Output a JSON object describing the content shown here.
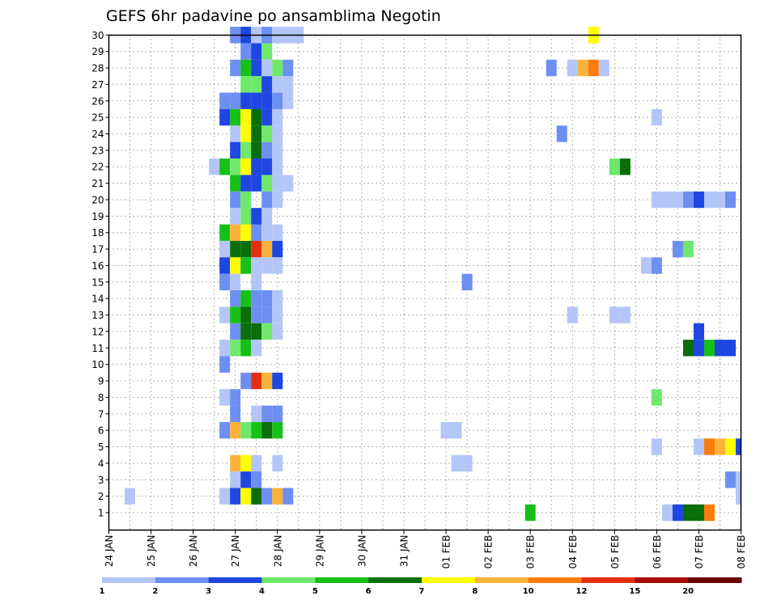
{
  "chart_data": {
    "type": "heatmap",
    "title": "GEFS 6hr padavine po ansamblima Negotin",
    "x_ticks": [
      "24 JAN",
      "25 JAN",
      "26 JAN",
      "27 JAN",
      "28 JAN",
      "29 JAN",
      "30 JAN",
      "31 JAN",
      "01 FEB",
      "02 FEB",
      "03 FEB",
      "04 FEB",
      "05 FEB",
      "06 FEB",
      "07 FEB",
      "08 FEB"
    ],
    "y_ticks": [
      "1",
      "2",
      "3",
      "4",
      "5",
      "6",
      "7",
      "8",
      "9",
      "10",
      "11",
      "12",
      "13",
      "14",
      "15",
      "16",
      "17",
      "18",
      "19",
      "20",
      "21",
      "22",
      "23",
      "24",
      "25",
      "26",
      "27",
      "28",
      "29",
      "30"
    ],
    "grid": true,
    "legend": {
      "position": "bottom",
      "labels": [
        "1",
        "2",
        "3",
        "4",
        "5",
        "6",
        "7",
        "8",
        "10",
        "12",
        "15",
        "20"
      ],
      "colors": [
        "#b3c6f7",
        "#6e8ff2",
        "#1e46e0",
        "#6fe86c",
        "#17c017",
        "#0a6e0a",
        "#ffff00",
        "#fdb33a",
        "#fb7b0c",
        "#e52e10",
        "#a80a0a",
        "#6a0303"
      ]
    },
    "cells": [
      {
        "member": 30,
        "x": "2026-01-27T00",
        "v": 2
      },
      {
        "member": 30,
        "x": "2026-01-27T06",
        "v": 3
      },
      {
        "member": 30,
        "x": "2026-01-27T12",
        "v": 1
      },
      {
        "member": 30,
        "x": "2026-01-27T18",
        "v": 2
      },
      {
        "member": 30,
        "x": "2026-01-28T00",
        "v": 1
      },
      {
        "member": 30,
        "x": "2026-01-28T06",
        "v": 1
      },
      {
        "member": 30,
        "x": "2026-01-28T12",
        "v": 1
      },
      {
        "member": 30,
        "x": "2026-02-04T12",
        "v": 7
      },
      {
        "member": 29,
        "x": "2026-01-27T06",
        "v": 2
      },
      {
        "member": 29,
        "x": "2026-01-27T12",
        "v": 3
      },
      {
        "member": 29,
        "x": "2026-01-27T18",
        "v": 4
      },
      {
        "member": 28,
        "x": "2026-01-27T00",
        "v": 2
      },
      {
        "member": 28,
        "x": "2026-01-27T06",
        "v": 5
      },
      {
        "member": 28,
        "x": "2026-01-27T12",
        "v": 3
      },
      {
        "member": 28,
        "x": "2026-01-27T18",
        "v": 1
      },
      {
        "member": 28,
        "x": "2026-01-28T00",
        "v": 4
      },
      {
        "member": 28,
        "x": "2026-01-28T06",
        "v": 2
      },
      {
        "member": 28,
        "x": "2026-02-03T12",
        "v": 2
      },
      {
        "member": 28,
        "x": "2026-02-04T00",
        "v": 1
      },
      {
        "member": 28,
        "x": "2026-02-04T06",
        "v": 8
      },
      {
        "member": 28,
        "x": "2026-02-04T12",
        "v": 10
      },
      {
        "member": 28,
        "x": "2026-02-04T18",
        "v": 1
      },
      {
        "member": 27,
        "x": "2026-01-27T06",
        "v": 4
      },
      {
        "member": 27,
        "x": "2026-01-27T12",
        "v": 4
      },
      {
        "member": 27,
        "x": "2026-01-27T18",
        "v": 3
      },
      {
        "member": 27,
        "x": "2026-01-28T00",
        "v": 1
      },
      {
        "member": 27,
        "x": "2026-01-28T06",
        "v": 1
      },
      {
        "member": 26,
        "x": "2026-01-26T18",
        "v": 2
      },
      {
        "member": 26,
        "x": "2026-01-27T00",
        "v": 2
      },
      {
        "member": 26,
        "x": "2026-01-27T06",
        "v": 3
      },
      {
        "member": 26,
        "x": "2026-01-27T12",
        "v": 3
      },
      {
        "member": 26,
        "x": "2026-01-27T18",
        "v": 3
      },
      {
        "member": 26,
        "x": "2026-01-28T00",
        "v": 2
      },
      {
        "member": 26,
        "x": "2026-01-28T06",
        "v": 1
      },
      {
        "member": 25,
        "x": "2026-01-26T18",
        "v": 3
      },
      {
        "member": 25,
        "x": "2026-01-27T00",
        "v": 5
      },
      {
        "member": 25,
        "x": "2026-01-27T06",
        "v": 7
      },
      {
        "member": 25,
        "x": "2026-01-27T12",
        "v": 6
      },
      {
        "member": 25,
        "x": "2026-01-27T18",
        "v": 3
      },
      {
        "member": 25,
        "x": "2026-01-28T00",
        "v": 1
      },
      {
        "member": 25,
        "x": "2026-02-06T00",
        "v": 1
      },
      {
        "member": 24,
        "x": "2026-01-27T00",
        "v": 1
      },
      {
        "member": 24,
        "x": "2026-01-27T06",
        "v": 7
      },
      {
        "member": 24,
        "x": "2026-01-27T12",
        "v": 6
      },
      {
        "member": 24,
        "x": "2026-01-27T18",
        "v": 4
      },
      {
        "member": 24,
        "x": "2026-01-28T00",
        "v": 1
      },
      {
        "member": 24,
        "x": "2026-02-03T18",
        "v": 2
      },
      {
        "member": 23,
        "x": "2026-01-27T00",
        "v": 3
      },
      {
        "member": 23,
        "x": "2026-01-27T06",
        "v": 4
      },
      {
        "member": 23,
        "x": "2026-01-27T12",
        "v": 6
      },
      {
        "member": 23,
        "x": "2026-01-27T18",
        "v": 2
      },
      {
        "member": 23,
        "x": "2026-01-28T00",
        "v": 1
      },
      {
        "member": 22,
        "x": "2026-01-26T12",
        "v": 1
      },
      {
        "member": 22,
        "x": "2026-01-26T18",
        "v": 5
      },
      {
        "member": 22,
        "x": "2026-01-27T00",
        "v": 4
      },
      {
        "member": 22,
        "x": "2026-01-27T06",
        "v": 7
      },
      {
        "member": 22,
        "x": "2026-01-27T12",
        "v": 3
      },
      {
        "member": 22,
        "x": "2026-01-27T18",
        "v": 3
      },
      {
        "member": 22,
        "x": "2026-01-28T00",
        "v": 1
      },
      {
        "member": 22,
        "x": "2026-02-05T00",
        "v": 4
      },
      {
        "member": 22,
        "x": "2026-02-05T06",
        "v": 6
      },
      {
        "member": 21,
        "x": "2026-01-27T00",
        "v": 5
      },
      {
        "member": 21,
        "x": "2026-01-27T06",
        "v": 3
      },
      {
        "member": 21,
        "x": "2026-01-27T12",
        "v": 3
      },
      {
        "member": 21,
        "x": "2026-01-27T18",
        "v": 4
      },
      {
        "member": 21,
        "x": "2026-01-28T00",
        "v": 1
      },
      {
        "member": 21,
        "x": "2026-01-28T06",
        "v": 1
      },
      {
        "member": 20,
        "x": "2026-01-27T00",
        "v": 2
      },
      {
        "member": 20,
        "x": "2026-01-27T06",
        "v": 4
      },
      {
        "member": 20,
        "x": "2026-01-27T18",
        "v": 2
      },
      {
        "member": 20,
        "x": "2026-01-28T00",
        "v": 1
      },
      {
        "member": 20,
        "x": "2026-02-06T00",
        "v": 1
      },
      {
        "member": 20,
        "x": "2026-02-06T06",
        "v": 1
      },
      {
        "member": 20,
        "x": "2026-02-06T12",
        "v": 1
      },
      {
        "member": 20,
        "x": "2026-02-06T18",
        "v": 2
      },
      {
        "member": 20,
        "x": "2026-02-07T00",
        "v": 3
      },
      {
        "member": 20,
        "x": "2026-02-07T06",
        "v": 1
      },
      {
        "member": 20,
        "x": "2026-02-07T12",
        "v": 1
      },
      {
        "member": 20,
        "x": "2026-02-07T18",
        "v": 2
      },
      {
        "member": 19,
        "x": "2026-01-27T00",
        "v": 1
      },
      {
        "member": 19,
        "x": "2026-01-27T06",
        "v": 4
      },
      {
        "member": 19,
        "x": "2026-01-27T12",
        "v": 3
      },
      {
        "member": 19,
        "x": "2026-01-27T18",
        "v": 1
      },
      {
        "member": 18,
        "x": "2026-01-26T18",
        "v": 5
      },
      {
        "member": 18,
        "x": "2026-01-27T00",
        "v": 8
      },
      {
        "member": 18,
        "x": "2026-01-27T06",
        "v": 7
      },
      {
        "member": 18,
        "x": "2026-01-27T12",
        "v": 2
      },
      {
        "member": 18,
        "x": "2026-01-27T18",
        "v": 1
      },
      {
        "member": 18,
        "x": "2026-01-28T00",
        "v": 1
      },
      {
        "member": 17,
        "x": "2026-01-26T18",
        "v": 1
      },
      {
        "member": 17,
        "x": "2026-01-27T00",
        "v": 6
      },
      {
        "member": 17,
        "x": "2026-01-27T06",
        "v": 6
      },
      {
        "member": 17,
        "x": "2026-01-27T12",
        "v": 12
      },
      {
        "member": 17,
        "x": "2026-01-27T18",
        "v": 8
      },
      {
        "member": 17,
        "x": "2026-01-28T00",
        "v": 3
      },
      {
        "member": 17,
        "x": "2026-02-06T12",
        "v": 2
      },
      {
        "member": 17,
        "x": "2026-02-06T18",
        "v": 4
      },
      {
        "member": 16,
        "x": "2026-01-26T18",
        "v": 3
      },
      {
        "member": 16,
        "x": "2026-01-27T00",
        "v": 7
      },
      {
        "member": 16,
        "x": "2026-01-27T06",
        "v": 5
      },
      {
        "member": 16,
        "x": "2026-01-27T12",
        "v": 1
      },
      {
        "member": 16,
        "x": "2026-01-27T18",
        "v": 1
      },
      {
        "member": 16,
        "x": "2026-01-28T00",
        "v": 1
      },
      {
        "member": 16,
        "x": "2026-02-05T18",
        "v": 1
      },
      {
        "member": 16,
        "x": "2026-02-06T00",
        "v": 2
      },
      {
        "member": 15,
        "x": "2026-01-26T18",
        "v": 2
      },
      {
        "member": 15,
        "x": "2026-01-27T00",
        "v": 1
      },
      {
        "member": 15,
        "x": "2026-01-27T12",
        "v": 1
      },
      {
        "member": 15,
        "x": "2026-02-01T12",
        "v": 2
      },
      {
        "member": 14,
        "x": "2026-01-27T00",
        "v": 2
      },
      {
        "member": 14,
        "x": "2026-01-27T06",
        "v": 5
      },
      {
        "member": 14,
        "x": "2026-01-27T12",
        "v": 2
      },
      {
        "member": 14,
        "x": "2026-01-27T18",
        "v": 2
      },
      {
        "member": 14,
        "x": "2026-01-28T00",
        "v": 1
      },
      {
        "member": 13,
        "x": "2026-01-26T18",
        "v": 1
      },
      {
        "member": 13,
        "x": "2026-01-27T00",
        "v": 5
      },
      {
        "member": 13,
        "x": "2026-01-27T06",
        "v": 6
      },
      {
        "member": 13,
        "x": "2026-01-27T12",
        "v": 2
      },
      {
        "member": 13,
        "x": "2026-01-27T18",
        "v": 2
      },
      {
        "member": 13,
        "x": "2026-01-28T00",
        "v": 1
      },
      {
        "member": 13,
        "x": "2026-02-04T00",
        "v": 1
      },
      {
        "member": 13,
        "x": "2026-02-05T00",
        "v": 1
      },
      {
        "member": 13,
        "x": "2026-02-05T06",
        "v": 1
      },
      {
        "member": 12,
        "x": "2026-01-27T00",
        "v": 2
      },
      {
        "member": 12,
        "x": "2026-01-27T06",
        "v": 6
      },
      {
        "member": 12,
        "x": "2026-01-27T12",
        "v": 6
      },
      {
        "member": 12,
        "x": "2026-01-27T18",
        "v": 4
      },
      {
        "member": 12,
        "x": "2026-01-28T00",
        "v": 1
      },
      {
        "member": 12,
        "x": "2026-02-07T00",
        "v": 3
      },
      {
        "member": 11,
        "x": "2026-01-26T18",
        "v": 1
      },
      {
        "member": 11,
        "x": "2026-01-27T00",
        "v": 4
      },
      {
        "member": 11,
        "x": "2026-01-27T06",
        "v": 5
      },
      {
        "member": 11,
        "x": "2026-01-27T12",
        "v": 1
      },
      {
        "member": 11,
        "x": "2026-02-06T18",
        "v": 6
      },
      {
        "member": 11,
        "x": "2026-02-07T00",
        "v": 3
      },
      {
        "member": 11,
        "x": "2026-02-07T06",
        "v": 5
      },
      {
        "member": 11,
        "x": "2026-02-07T12",
        "v": 3
      },
      {
        "member": 11,
        "x": "2026-02-07T18",
        "v": 3
      },
      {
        "member": 10,
        "x": "2026-01-26T18",
        "v": 2
      },
      {
        "member": 9,
        "x": "2026-01-27T06",
        "v": 2
      },
      {
        "member": 9,
        "x": "2026-01-27T12",
        "v": 12
      },
      {
        "member": 9,
        "x": "2026-01-27T18",
        "v": 8
      },
      {
        "member": 9,
        "x": "2026-01-28T00",
        "v": 3
      },
      {
        "member": 8,
        "x": "2026-01-26T18",
        "v": 1
      },
      {
        "member": 8,
        "x": "2026-01-27T00",
        "v": 2
      },
      {
        "member": 8,
        "x": "2026-02-06T00",
        "v": 4
      },
      {
        "member": 7,
        "x": "2026-01-27T00",
        "v": 2
      },
      {
        "member": 7,
        "x": "2026-01-27T12",
        "v": 1
      },
      {
        "member": 7,
        "x": "2026-01-27T18",
        "v": 2
      },
      {
        "member": 7,
        "x": "2026-01-28T00",
        "v": 2
      },
      {
        "member": 6,
        "x": "2026-01-26T18",
        "v": 2
      },
      {
        "member": 6,
        "x": "2026-01-27T00",
        "v": 8
      },
      {
        "member": 6,
        "x": "2026-01-27T06",
        "v": 4
      },
      {
        "member": 6,
        "x": "2026-01-27T12",
        "v": 5
      },
      {
        "member": 6,
        "x": "2026-01-27T18",
        "v": 6
      },
      {
        "member": 6,
        "x": "2026-01-28T00",
        "v": 5
      },
      {
        "member": 6,
        "x": "2026-02-01T00",
        "v": 1
      },
      {
        "member": 6,
        "x": "2026-02-01T06",
        "v": 1
      },
      {
        "member": 5,
        "x": "2026-02-06T00",
        "v": 1
      },
      {
        "member": 5,
        "x": "2026-02-07T00",
        "v": 1
      },
      {
        "member": 5,
        "x": "2026-02-07T06",
        "v": 10
      },
      {
        "member": 5,
        "x": "2026-02-07T12",
        "v": 8
      },
      {
        "member": 5,
        "x": "2026-02-07T18",
        "v": 7
      },
      {
        "member": 5,
        "x": "2026-02-08T00",
        "v": 3
      },
      {
        "member": 4,
        "x": "2026-01-27T00",
        "v": 8
      },
      {
        "member": 4,
        "x": "2026-01-27T06",
        "v": 7
      },
      {
        "member": 4,
        "x": "2026-01-27T12",
        "v": 1
      },
      {
        "member": 4,
        "x": "2026-01-28T00",
        "v": 1
      },
      {
        "member": 4,
        "x": "2026-02-01T06",
        "v": 1
      },
      {
        "member": 4,
        "x": "2026-02-01T12",
        "v": 1
      },
      {
        "member": 3,
        "x": "2026-01-27T00",
        "v": 1
      },
      {
        "member": 3,
        "x": "2026-01-27T06",
        "v": 3
      },
      {
        "member": 3,
        "x": "2026-01-27T12",
        "v": 2
      },
      {
        "member": 3,
        "x": "2026-02-07T18",
        "v": 2
      },
      {
        "member": 3,
        "x": "2026-02-08T00",
        "v": 1
      },
      {
        "member": 2,
        "x": "2026-01-24T12",
        "v": 1
      },
      {
        "member": 2,
        "x": "2026-01-26T18",
        "v": 1
      },
      {
        "member": 2,
        "x": "2026-01-27T00",
        "v": 3
      },
      {
        "member": 2,
        "x": "2026-01-27T06",
        "v": 7
      },
      {
        "member": 2,
        "x": "2026-01-27T12",
        "v": 6
      },
      {
        "member": 2,
        "x": "2026-01-27T18",
        "v": 2
      },
      {
        "member": 2,
        "x": "2026-01-28T00",
        "v": 8
      },
      {
        "member": 2,
        "x": "2026-01-28T06",
        "v": 2
      },
      {
        "member": 2,
        "x": "2026-02-08T00",
        "v": 1
      },
      {
        "member": 1,
        "x": "2026-02-03T00",
        "v": 5
      },
      {
        "member": 1,
        "x": "2026-02-06T06",
        "v": 1
      },
      {
        "member": 1,
        "x": "2026-02-06T12",
        "v": 3
      },
      {
        "member": 1,
        "x": "2026-02-06T18",
        "v": 6
      },
      {
        "member": 1,
        "x": "2026-02-07T00",
        "v": 6
      },
      {
        "member": 1,
        "x": "2026-02-07T06",
        "v": 10
      }
    ]
  }
}
